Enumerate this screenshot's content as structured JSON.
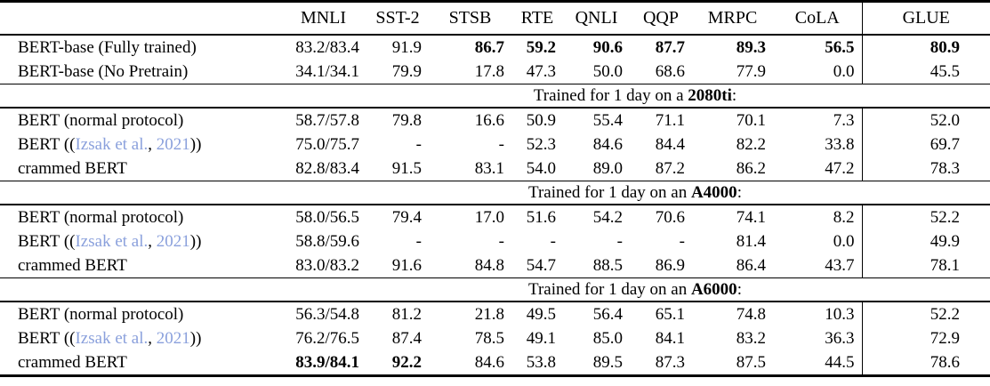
{
  "link_color": "#8aa0dc",
  "table": {
    "header": [
      "",
      "MNLI",
      "SST-2",
      "STSB",
      "RTE",
      "QNLI",
      "QQP",
      "MRPC",
      "CoLA",
      "GLUE"
    ],
    "sections": [
      {
        "title_parts": null,
        "rows": [
          {
            "label_parts": [
              {
                "t": "BERT-base (Fully trained)"
              }
            ],
            "values": [
              "83.2/83.4",
              "91.9",
              "86.7",
              "59.2",
              "90.6",
              "87.7",
              "89.3",
              "56.5",
              "80.9"
            ],
            "bold_values": [
              2,
              3,
              4,
              5,
              6,
              7,
              8
            ]
          },
          {
            "label_parts": [
              {
                "t": "BERT-base (No Pretrain)"
              }
            ],
            "values": [
              "34.1/34.1",
              "79.9",
              "17.8",
              "47.3",
              "50.0",
              "68.6",
              "77.9",
              "0.0",
              "45.5"
            ],
            "bold_values": []
          }
        ]
      },
      {
        "title_parts": [
          {
            "t": "Trained for 1 day on a "
          },
          {
            "t": "2080ti",
            "bold": true
          },
          {
            "t": ":"
          }
        ],
        "rows": [
          {
            "label_parts": [
              {
                "t": "BERT (normal protocol)"
              }
            ],
            "values": [
              "58.7/57.8",
              "79.8",
              "16.6",
              "50.9",
              "55.4",
              "71.1",
              "70.1",
              "7.3",
              "52.0"
            ],
            "bold_values": []
          },
          {
            "label_parts": [
              {
                "t": "BERT (("
              },
              {
                "t": "Izsak et al.",
                "link": true
              },
              {
                "t": ", "
              },
              {
                "t": "2021",
                "link": true
              },
              {
                "t": "))"
              }
            ],
            "values": [
              "75.0/75.7",
              "-",
              "-",
              "52.3",
              "84.6",
              "84.4",
              "82.2",
              "33.8",
              "69.7"
            ],
            "bold_values": []
          },
          {
            "label_parts": [
              {
                "t": "crammed BERT"
              }
            ],
            "values": [
              "82.8/83.4",
              "91.5",
              "83.1",
              "54.0",
              "89.0",
              "87.2",
              "86.2",
              "47.2",
              "78.3"
            ],
            "bold_values": []
          }
        ]
      },
      {
        "title_parts": [
          {
            "t": "Trained for 1 day on an "
          },
          {
            "t": "A4000",
            "bold": true
          },
          {
            "t": ":"
          }
        ],
        "rows": [
          {
            "label_parts": [
              {
                "t": "BERT (normal protocol)"
              }
            ],
            "values": [
              "58.0/56.5",
              "79.4",
              "17.0",
              "51.6",
              "54.2",
              "70.6",
              "74.1",
              "8.2",
              "52.2"
            ],
            "bold_values": []
          },
          {
            "label_parts": [
              {
                "t": "BERT (("
              },
              {
                "t": "Izsak et al.",
                "link": true
              },
              {
                "t": ", "
              },
              {
                "t": "2021",
                "link": true
              },
              {
                "t": "))"
              }
            ],
            "values": [
              "58.8/59.6",
              "-",
              "-",
              "-",
              "-",
              "-",
              "81.4",
              "0.0",
              "49.9"
            ],
            "bold_values": []
          },
          {
            "label_parts": [
              {
                "t": "crammed BERT"
              }
            ],
            "values": [
              "83.0/83.2",
              "91.6",
              "84.8",
              "54.7",
              "88.5",
              "86.9",
              "86.4",
              "43.7",
              "78.1"
            ],
            "bold_values": []
          }
        ]
      },
      {
        "title_parts": [
          {
            "t": "Trained for 1 day on an "
          },
          {
            "t": "A6000",
            "bold": true
          },
          {
            "t": ":"
          }
        ],
        "rows": [
          {
            "label_parts": [
              {
                "t": "BERT (normal protocol)"
              }
            ],
            "values": [
              "56.3/54.8",
              "81.2",
              "21.8",
              "49.5",
              "56.4",
              "65.1",
              "74.8",
              "10.3",
              "52.2"
            ],
            "bold_values": []
          },
          {
            "label_parts": [
              {
                "t": "BERT (("
              },
              {
                "t": "Izsak et al.",
                "link": true
              },
              {
                "t": ", "
              },
              {
                "t": "2021",
                "link": true
              },
              {
                "t": "))"
              }
            ],
            "values": [
              "76.2/76.5",
              "87.4",
              "78.5",
              "49.1",
              "85.0",
              "84.1",
              "83.2",
              "36.3",
              "72.9"
            ],
            "bold_values": []
          },
          {
            "label_parts": [
              {
                "t": "crammed BERT"
              }
            ],
            "values": [
              "83.9/84.1",
              "92.2",
              "84.6",
              "53.8",
              "89.5",
              "87.3",
              "87.5",
              "44.5",
              "78.6"
            ],
            "bold_values": [
              0,
              1
            ]
          }
        ]
      }
    ]
  }
}
